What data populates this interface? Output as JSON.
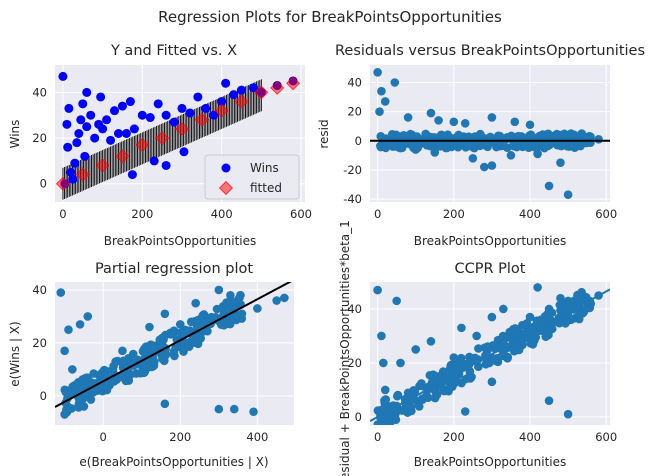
{
  "figure": {
    "suptitle": "Regression Plots for BreakPointsOpportunities"
  },
  "colors": {
    "plot_bg": "#eaeaf2",
    "grid": "#ffffff",
    "blue": "#0000ff",
    "red": "#ff0000",
    "steel": "#1f77b4",
    "black": "#000000"
  },
  "chart_data": [
    {
      "type": "scatter",
      "title": "Y and Fitted vs. X",
      "xlabel": "BreakPointsOpportunities",
      "ylabel": "Wins",
      "xlim": [
        -20,
        610
      ],
      "ylim": [
        -8,
        52
      ],
      "xticks": [
        0,
        200,
        400,
        600
      ],
      "yticks": [
        0,
        20,
        40
      ],
      "legend": {
        "placement": "lower-right",
        "entries": [
          "Wins",
          "fitted"
        ]
      },
      "series": [
        {
          "name": "Wins",
          "marker": "circle",
          "color": "#0000ff",
          "points": [
            [
              0,
              47
            ],
            [
              5,
              0
            ],
            [
              10,
              26
            ],
            [
              12,
              16
            ],
            [
              15,
              33
            ],
            [
              20,
              5
            ],
            [
              25,
              2
            ],
            [
              30,
              9
            ],
            [
              35,
              18
            ],
            [
              40,
              22
            ],
            [
              45,
              28
            ],
            [
              50,
              35
            ],
            [
              55,
              12
            ],
            [
              60,
              25
            ],
            [
              70,
              30
            ],
            [
              80,
              20
            ],
            [
              90,
              26
            ],
            [
              100,
              24
            ],
            [
              110,
              28
            ],
            [
              120,
              19
            ],
            [
              130,
              32
            ],
            [
              140,
              22
            ],
            [
              150,
              34
            ],
            [
              160,
              22
            ],
            [
              170,
              36
            ],
            [
              180,
              24
            ],
            [
              200,
              30
            ],
            [
              220,
              29
            ],
            [
              240,
              35
            ],
            [
              260,
              30
            ],
            [
              280,
              27
            ],
            [
              300,
              33
            ],
            [
              320,
              31
            ],
            [
              340,
              38
            ],
            [
              360,
              33
            ],
            [
              380,
              30
            ],
            [
              400,
              36
            ],
            [
              410,
              44
            ],
            [
              430,
              39
            ],
            [
              450,
              41
            ],
            [
              480,
              42
            ],
            [
              500,
              40
            ],
            [
              540,
              43
            ],
            [
              580,
              45
            ],
            [
              175,
              4
            ],
            [
              230,
              10
            ],
            [
              260,
              8
            ],
            [
              305,
              14
            ],
            [
              95,
              38
            ],
            [
              60,
              40
            ]
          ]
        },
        {
          "name": "fitted",
          "marker": "diamond",
          "color": "#ff0000",
          "points": [
            [
              0,
              0
            ],
            [
              50,
              4
            ],
            [
              100,
              8
            ],
            [
              150,
              12
            ],
            [
              200,
              17
            ],
            [
              250,
              20
            ],
            [
              300,
              24
            ],
            [
              350,
              28
            ],
            [
              400,
              32
            ],
            [
              450,
              36
            ],
            [
              500,
              40
            ],
            [
              540,
              42
            ],
            [
              580,
              44
            ]
          ]
        }
      ],
      "fit_band": {
        "intercept": 0,
        "slope": 0.0775,
        "x_range": [
          0,
          500
        ]
      }
    },
    {
      "type": "scatter",
      "title": "Residuals versus BreakPointsOpportunities",
      "xlabel": "BreakPointsOpportunities",
      "ylabel": "resid",
      "xlim": [
        -20,
        610
      ],
      "ylim": [
        -42,
        52
      ],
      "xticks": [
        0,
        200,
        400,
        600
      ],
      "yticks": [
        -40,
        -20,
        0,
        20,
        40
      ],
      "hline": 0,
      "points": [
        [
          0,
          47
        ],
        [
          10,
          34
        ],
        [
          45,
          40
        ],
        [
          20,
          27
        ],
        [
          5,
          20
        ],
        [
          80,
          16
        ],
        [
          140,
          19
        ],
        [
          160,
          14
        ],
        [
          200,
          13
        ],
        [
          230,
          12
        ],
        [
          300,
          16
        ],
        [
          360,
          13
        ],
        [
          400,
          11
        ],
        [
          280,
          -18
        ],
        [
          300,
          -17
        ],
        [
          150,
          -8
        ],
        [
          60,
          -5
        ],
        [
          450,
          -31
        ],
        [
          500,
          -37
        ],
        [
          540,
          2
        ],
        [
          580,
          1
        ],
        [
          350,
          -10
        ],
        [
          420,
          -9
        ],
        [
          250,
          -12
        ],
        [
          100,
          -6
        ],
        [
          40,
          -4
        ],
        [
          480,
          -15
        ]
      ]
    },
    {
      "type": "scatter",
      "title": "Partial regression plot",
      "xlabel": "e(BreakPointsOpportunities | X)",
      "ylabel": "e(Wins | X)",
      "xlim": [
        -125,
        495
      ],
      "ylim": [
        -11,
        43
      ],
      "xticks": [
        0,
        200,
        400
      ],
      "yticks": [
        0,
        20,
        40
      ],
      "fit_line": {
        "intercept": 5.5,
        "slope": 0.0775
      },
      "points": [
        [
          -110,
          39
        ],
        [
          -100,
          17
        ],
        [
          -90,
          25
        ],
        [
          -80,
          10
        ],
        [
          -60,
          27
        ],
        [
          -40,
          30
        ],
        [
          50,
          17
        ],
        [
          70,
          8
        ],
        [
          120,
          26
        ],
        [
          160,
          31
        ],
        [
          200,
          27
        ],
        [
          240,
          35
        ],
        [
          300,
          40
        ],
        [
          330,
          38
        ],
        [
          360,
          31
        ],
        [
          400,
          33
        ],
        [
          450,
          36
        ],
        [
          470,
          37
        ],
        [
          300,
          -5
        ],
        [
          340,
          -5
        ],
        [
          390,
          -6
        ],
        [
          160,
          -3
        ],
        [
          -100,
          -7
        ],
        [
          -50,
          -4
        ]
      ]
    },
    {
      "type": "scatter",
      "title": "CCPR Plot",
      "xlabel": "BreakPointsOpportunities",
      "ylabel": "Residual + BreakPointsOpportunities*beta_1",
      "xlim": [
        -20,
        610
      ],
      "ylim": [
        -3,
        50
      ],
      "xticks": [
        0,
        200,
        400,
        600
      ],
      "yticks": [
        0,
        20,
        40
      ],
      "fit_line": {
        "intercept": 0,
        "slope": 0.0775
      },
      "points": [
        [
          0,
          47
        ],
        [
          50,
          43
        ],
        [
          10,
          30
        ],
        [
          15,
          20
        ],
        [
          20,
          10
        ],
        [
          5,
          2
        ],
        [
          60,
          20
        ],
        [
          100,
          25
        ],
        [
          140,
          28
        ],
        [
          160,
          15
        ],
        [
          200,
          22
        ],
        [
          220,
          33
        ],
        [
          260,
          30
        ],
        [
          300,
          37
        ],
        [
          330,
          40
        ],
        [
          350,
          31
        ],
        [
          380,
          34
        ],
        [
          400,
          37
        ],
        [
          420,
          48
        ],
        [
          450,
          40
        ],
        [
          480,
          44
        ],
        [
          510,
          42
        ],
        [
          540,
          44
        ],
        [
          580,
          45
        ],
        [
          300,
          13
        ],
        [
          230,
          2
        ],
        [
          450,
          6
        ],
        [
          500,
          1
        ]
      ]
    }
  ]
}
